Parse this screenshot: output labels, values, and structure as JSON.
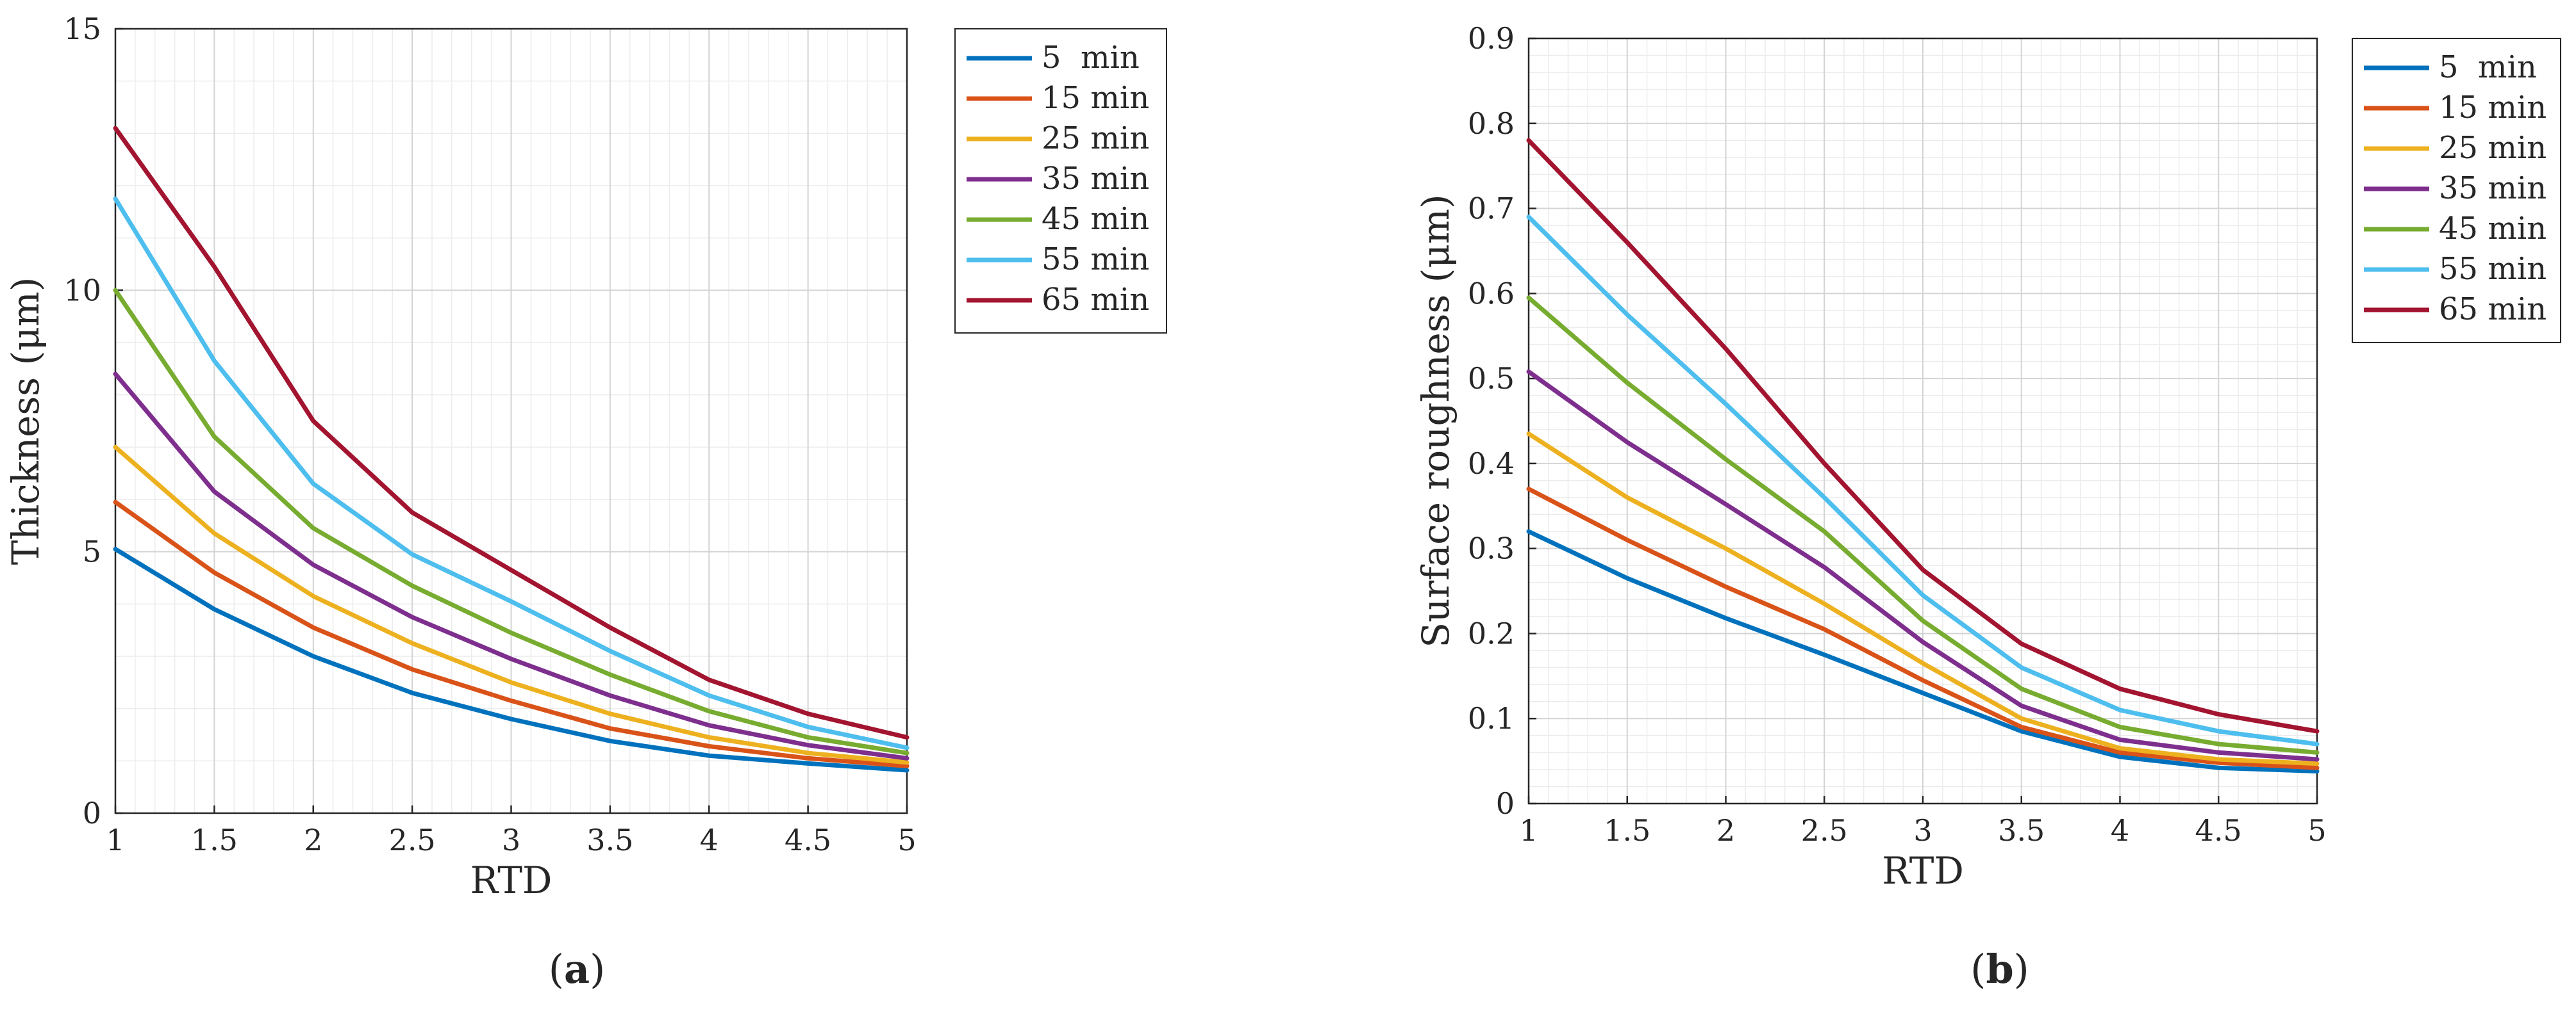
{
  "chart_data": [
    {
      "type": "line",
      "panel_label": "(a)",
      "title": "",
      "xlabel": "RTD",
      "ylabel": "Thickness (μm)",
      "xlim": [
        1,
        5
      ],
      "ylim": [
        0,
        15
      ],
      "xticks": [
        1,
        1.5,
        2,
        2.5,
        3,
        3.5,
        4,
        4.5,
        5
      ],
      "xtick_labels": [
        "1",
        "1.5",
        "2",
        "2.5",
        "3",
        "3.5",
        "4",
        "4.5",
        "5"
      ],
      "yticks": [
        0,
        5,
        10,
        15
      ],
      "ytick_labels": [
        "0",
        "5",
        "10",
        "15"
      ],
      "grid": true,
      "legend_position": "outside-right-top",
      "x": [
        1,
        1.5,
        2,
        2.5,
        3,
        3.5,
        4,
        4.5,
        5
      ],
      "series": [
        {
          "name": "5  min",
          "color": "#0072BD",
          "values": [
            5.05,
            3.9,
            3.0,
            2.3,
            1.8,
            1.38,
            1.1,
            0.95,
            0.82
          ]
        },
        {
          "name": "15 min",
          "color": "#D95319",
          "values": [
            5.95,
            4.6,
            3.55,
            2.75,
            2.15,
            1.62,
            1.28,
            1.05,
            0.9
          ]
        },
        {
          "name": "25 min",
          "color": "#EDB120",
          "values": [
            7.0,
            5.35,
            4.15,
            3.25,
            2.5,
            1.9,
            1.45,
            1.15,
            0.97
          ]
        },
        {
          "name": "35 min",
          "color": "#7E2F8E",
          "values": [
            8.4,
            6.15,
            4.75,
            3.75,
            2.95,
            2.25,
            1.68,
            1.3,
            1.05
          ]
        },
        {
          "name": "45 min",
          "color": "#77AC30",
          "values": [
            10.0,
            7.2,
            5.45,
            4.35,
            3.45,
            2.65,
            1.95,
            1.45,
            1.15
          ]
        },
        {
          "name": "55 min",
          "color": "#4DBEEE",
          "values": [
            11.75,
            8.65,
            6.3,
            4.95,
            4.05,
            3.1,
            2.25,
            1.65,
            1.25
          ]
        },
        {
          "name": "65 min",
          "color": "#A2142F",
          "values": [
            13.1,
            10.45,
            7.5,
            5.75,
            4.65,
            3.55,
            2.55,
            1.9,
            1.45
          ]
        }
      ]
    },
    {
      "type": "line",
      "panel_label": "(b)",
      "title": "",
      "xlabel": "RTD",
      "ylabel": "Surface roughness (μm)",
      "xlim": [
        1,
        5
      ],
      "ylim": [
        0,
        0.9
      ],
      "xticks": [
        1,
        1.5,
        2,
        2.5,
        3,
        3.5,
        4,
        4.5,
        5
      ],
      "xtick_labels": [
        "1",
        "1.5",
        "2",
        "2.5",
        "3",
        "3.5",
        "4",
        "4.5",
        "5"
      ],
      "yticks": [
        0,
        0.1,
        0.2,
        0.3,
        0.4,
        0.5,
        0.6,
        0.7,
        0.8,
        0.9
      ],
      "ytick_labels": [
        "0",
        "0.1",
        "0.2",
        "0.3",
        "0.4",
        "0.5",
        "0.6",
        "0.7",
        "0.8",
        "0.9"
      ],
      "grid": true,
      "legend_position": "outside-right-top",
      "x": [
        1,
        1.5,
        2,
        2.5,
        3,
        3.5,
        4,
        4.5,
        5
      ],
      "series": [
        {
          "name": "5  min",
          "color": "#0072BD",
          "values": [
            0.32,
            0.265,
            0.218,
            0.175,
            0.13,
            0.085,
            0.055,
            0.042,
            0.038
          ]
        },
        {
          "name": "15 min",
          "color": "#D95319",
          "values": [
            0.37,
            0.31,
            0.255,
            0.205,
            0.145,
            0.09,
            0.06,
            0.048,
            0.042
          ]
        },
        {
          "name": "25 min",
          "color": "#EDB120",
          "values": [
            0.435,
            0.36,
            0.3,
            0.235,
            0.165,
            0.1,
            0.065,
            0.052,
            0.047
          ]
        },
        {
          "name": "35 min",
          "color": "#7E2F8E",
          "values": [
            0.508,
            0.425,
            0.352,
            0.278,
            0.19,
            0.115,
            0.075,
            0.06,
            0.052
          ]
        },
        {
          "name": "45 min",
          "color": "#77AC30",
          "values": [
            0.595,
            0.495,
            0.405,
            0.32,
            0.215,
            0.135,
            0.09,
            0.07,
            0.06
          ]
        },
        {
          "name": "55 min",
          "color": "#4DBEEE",
          "values": [
            0.69,
            0.575,
            0.47,
            0.36,
            0.245,
            0.16,
            0.11,
            0.085,
            0.07
          ]
        },
        {
          "name": "65 min",
          "color": "#A2142F",
          "values": [
            0.78,
            0.66,
            0.535,
            0.4,
            0.275,
            0.188,
            0.135,
            0.105,
            0.085
          ]
        }
      ]
    }
  ]
}
